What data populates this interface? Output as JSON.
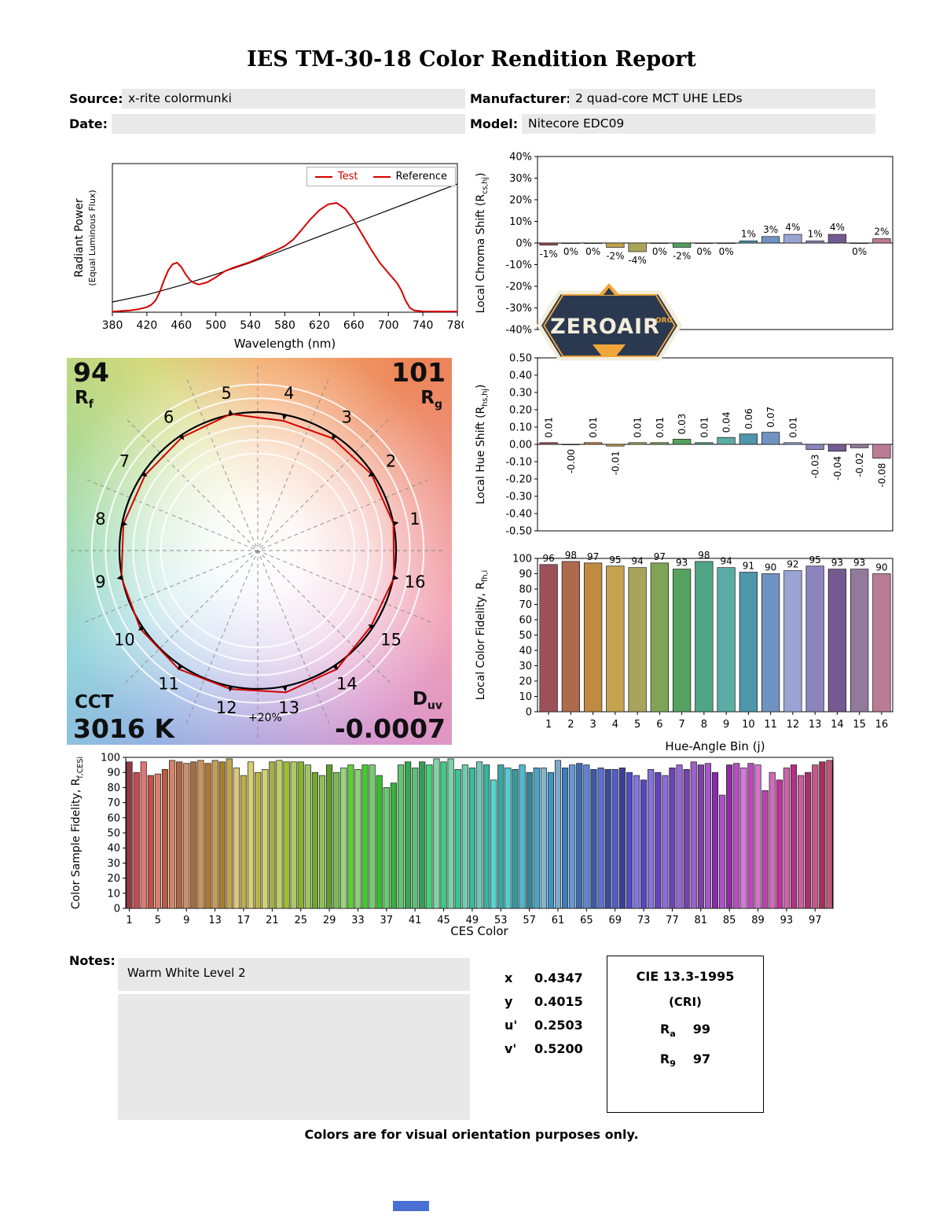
{
  "page": {
    "title": "IES TM-30-18 Color Rendition Report",
    "footer": "Colors are for visual orientation purposes only.",
    "notes_label": "Notes:",
    "notes_value": "Warm White Level 2"
  },
  "header": {
    "source_label": "Source:",
    "source_value": "x-rite colormunki",
    "date_label": "Date:",
    "date_value": "",
    "manufacturer_label": "Manufacturer:",
    "manufacturer_value": "2 quad-core MCT UHE LEDs",
    "model_label": "Model:",
    "model_value": "Nitecore EDC09"
  },
  "logo": {
    "name": "ZEROAIR",
    "org": "ORG",
    "navy": "#2b3950",
    "orange": "#f1a63a",
    "cream": "#f3edda"
  },
  "summary": {
    "rf_value": "94",
    "rf_label": "R",
    "rf_sub": "f",
    "rg_value": "101",
    "rg_label": "R",
    "rg_sub": "g",
    "cct_label": "CCT",
    "cct_value": "3016 K",
    "duv_label": "D",
    "duv_sub": "uv",
    "duv_value": "-0.0007"
  },
  "chromaticity": {
    "rows": [
      {
        "label": "x",
        "value": "0.4347"
      },
      {
        "label": "y",
        "value": "0.4015"
      },
      {
        "label": "u'",
        "value": "0.2503"
      },
      {
        "label": "v'",
        "value": "0.5200"
      }
    ]
  },
  "cie": {
    "title": "CIE 13.3-1995",
    "subtitle": "(CRI)",
    "ra_label": "R",
    "ra_sub": "a",
    "ra_value": "99",
    "r9_label": "R",
    "r9_sub": "9",
    "r9_value": "97"
  },
  "bin_colors": [
    "#9c5058",
    "#ad6a4d",
    "#c08a41",
    "#c4a24e",
    "#a8a55b",
    "#7fa457",
    "#55a15f",
    "#50a584",
    "#5aaca4",
    "#4f95ab",
    "#6f93c2",
    "#99a4d4",
    "#8c84bd",
    "#755a92",
    "#927a9b",
    "#bb7b95"
  ],
  "chart_data": {
    "spd": {
      "type": "line",
      "xlabel": "Wavelength (nm)",
      "ylabel": "Radiant Power",
      "ylabel2": "(Equal Luminous Flux)",
      "xlim": [
        380,
        780
      ],
      "ylim": [
        0,
        1.02
      ],
      "xticks": [
        380,
        420,
        460,
        500,
        540,
        580,
        620,
        660,
        700,
        740,
        780
      ],
      "legend": [
        {
          "label": "Test",
          "color": "#d40000",
          "text_color": "#d40000"
        },
        {
          "label": "Reference",
          "color": "#d40000",
          "text_color": "#000000"
        }
      ],
      "series": [
        {
          "name": "Reference",
          "color": "#000000",
          "width": 1.2,
          "x": [
            380,
            420,
            460,
            500,
            540,
            580,
            620,
            660,
            700,
            740,
            780
          ],
          "y": [
            0.07,
            0.12,
            0.185,
            0.26,
            0.34,
            0.43,
            0.52,
            0.61,
            0.7,
            0.79,
            0.88
          ]
        },
        {
          "name": "Test",
          "color": "#d40000",
          "width": 2,
          "x": [
            380,
            390,
            400,
            410,
            420,
            425,
            430,
            435,
            440,
            445,
            450,
            455,
            460,
            465,
            470,
            475,
            480,
            490,
            500,
            510,
            520,
            530,
            540,
            550,
            560,
            570,
            580,
            590,
            600,
            610,
            620,
            630,
            640,
            650,
            660,
            670,
            680,
            690,
            700,
            710,
            715,
            720,
            725,
            730,
            740,
            760,
            780
          ],
          "y": [
            0.005,
            0.008,
            0.012,
            0.02,
            0.035,
            0.05,
            0.08,
            0.14,
            0.22,
            0.29,
            0.33,
            0.34,
            0.31,
            0.26,
            0.22,
            0.2,
            0.19,
            0.205,
            0.24,
            0.28,
            0.305,
            0.325,
            0.345,
            0.37,
            0.4,
            0.425,
            0.455,
            0.5,
            0.57,
            0.64,
            0.7,
            0.74,
            0.75,
            0.71,
            0.63,
            0.53,
            0.43,
            0.34,
            0.27,
            0.2,
            0.15,
            0.08,
            0.03,
            0.012,
            0.006,
            0.005,
            0.005
          ]
        }
      ]
    },
    "chroma_shift": {
      "type": "bar",
      "ylabel_pre": "Local Chroma Shift (R",
      "ylabel_sub": "cs,hj",
      "ylabel_post": ")",
      "ylim": [
        -40,
        40
      ],
      "yticks": [
        40,
        30,
        20,
        10,
        0,
        -10,
        -20,
        -30,
        -40
      ],
      "ytick_labels": [
        "40%",
        "30%",
        "20%",
        "10%",
        "0%",
        "-10%",
        "-20%",
        "-30%",
        "-40%"
      ],
      "categories": [
        1,
        2,
        3,
        4,
        5,
        6,
        7,
        8,
        9,
        10,
        11,
        12,
        13,
        14,
        15,
        16
      ],
      "values": [
        -1,
        0,
        0,
        -2,
        -4,
        0,
        -2,
        0,
        0,
        1,
        3,
        4,
        1,
        4,
        0,
        2
      ],
      "labels": [
        "-1%",
        "0%",
        "0%",
        "-2%",
        "-4%",
        "0%",
        "-2%",
        "0%",
        "0%",
        "1%",
        "3%",
        "4%",
        "1%",
        "4%",
        "0%",
        "2%"
      ]
    },
    "hue_shift": {
      "type": "bar",
      "ylabel_pre": "Local Hue Shift (R",
      "ylabel_sub": "hs,hj",
      "ylabel_post": ")",
      "ylim": [
        -0.5,
        0.5
      ],
      "yticks": [
        0.5,
        0.4,
        0.3,
        0.2,
        0.1,
        0,
        -0.1,
        -0.2,
        -0.3,
        -0.4,
        -0.5
      ],
      "ytick_labels": [
        "0.50",
        "0.40",
        "0.30",
        "0.20",
        "0.10",
        "0.00",
        "-0.10",
        "-0.20",
        "-0.30",
        "-0.40",
        "-0.50"
      ],
      "categories": [
        1,
        2,
        3,
        4,
        5,
        6,
        7,
        8,
        9,
        10,
        11,
        12,
        13,
        14,
        15,
        16
      ],
      "values": [
        0.01,
        -0.0,
        0.01,
        -0.01,
        0.01,
        0.01,
        0.03,
        0.01,
        0.04,
        0.06,
        0.07,
        0.01,
        -0.03,
        -0.04,
        -0.02,
        -0.08
      ],
      "labels": [
        "0.01",
        "-0.00",
        "0.01",
        "-0.01",
        "0.01",
        "0.01",
        "0.03",
        "0.01",
        "0.04",
        "0.06",
        "0.07",
        "0.01",
        "-0.03",
        "-0.04",
        "-0.02",
        "-0.08"
      ]
    },
    "local_fidelity": {
      "type": "bar",
      "xlabel": "Hue-Angle Bin (j)",
      "ylabel_pre": "Local Color Fidelity, R",
      "ylabel_sub": "fh,i",
      "ylabel_post": "",
      "ylim": [
        0,
        100
      ],
      "yticks": [
        100,
        90,
        80,
        70,
        60,
        50,
        40,
        30,
        20,
        10,
        0
      ],
      "ytick_labels": [
        "100",
        "90",
        "80",
        "70",
        "60",
        "50",
        "40",
        "30",
        "20",
        "10",
        "0"
      ],
      "categories": [
        1,
        2,
        3,
        4,
        5,
        6,
        7,
        8,
        9,
        10,
        11,
        12,
        13,
        14,
        15,
        16
      ],
      "values": [
        96,
        98,
        97,
        95,
        94,
        97,
        93,
        98,
        94,
        91,
        90,
        92,
        95,
        93,
        93,
        90
      ],
      "labels": [
        "96",
        "98",
        "97",
        "95",
        "94",
        "97",
        "93",
        "98",
        "94",
        "91",
        "90",
        "92",
        "95",
        "93",
        "93",
        "90"
      ]
    },
    "ces_fidelity": {
      "type": "bar",
      "xlabel": "CES Color",
      "ylabel_pre": "Color Sample Fidelity, R",
      "ylabel_sub": "f,CESi",
      "ylabel_post": "",
      "ylim": [
        0,
        100
      ],
      "yticks": [
        100,
        90,
        80,
        70,
        60,
        50,
        40,
        30,
        20,
        10,
        0
      ],
      "ytick_labels": [
        "100",
        "90",
        "80",
        "70",
        "60",
        "50",
        "40",
        "30",
        "20",
        "10",
        "0"
      ],
      "xticks": [
        1,
        5,
        9,
        13,
        17,
        21,
        25,
        29,
        33,
        37,
        41,
        45,
        49,
        53,
        57,
        61,
        65,
        69,
        73,
        77,
        81,
        85,
        89,
        93,
        97
      ],
      "values": [
        97,
        90,
        97,
        88,
        89,
        92,
        98,
        97,
        96,
        97,
        98,
        96,
        98,
        97,
        99,
        93,
        88,
        97,
        90,
        92,
        97,
        98,
        97,
        97,
        97,
        95,
        90,
        88,
        95,
        90,
        93,
        95,
        92,
        95,
        95,
        88,
        80,
        83,
        95,
        97,
        93,
        97,
        95,
        99,
        97,
        99,
        92,
        95,
        93,
        97,
        95,
        85,
        95,
        93,
        92,
        95,
        90,
        93,
        93,
        90,
        98,
        93,
        95,
        96,
        95,
        92,
        93,
        92,
        92,
        93,
        90,
        88,
        85,
        92,
        90,
        88,
        93,
        95,
        92,
        97,
        95,
        96,
        90,
        75,
        95,
        96,
        93,
        96,
        95,
        78,
        90,
        85,
        93,
        95,
        88,
        90,
        95,
        97,
        98
      ],
      "color_rule": "hue sweep red-orange-yellow-green-cyan-blue-purple-pink, varying lightness"
    },
    "cvg": {
      "type": "polar",
      "bin_numbers": [
        "1",
        "2",
        "3",
        "4",
        "5",
        "6",
        "7",
        "8",
        "9",
        "10",
        "11",
        "12",
        "13",
        "14",
        "15",
        "16"
      ],
      "test_radii": [
        1.0,
        0.99,
        0.975,
        0.955,
        1.005,
        0.985,
        0.98,
        0.99,
        1.005,
        1.02,
        1.03,
        1.02,
        1.045,
        1.03,
        0.985,
        1.005
      ],
      "ring_label": "+20%"
    }
  }
}
